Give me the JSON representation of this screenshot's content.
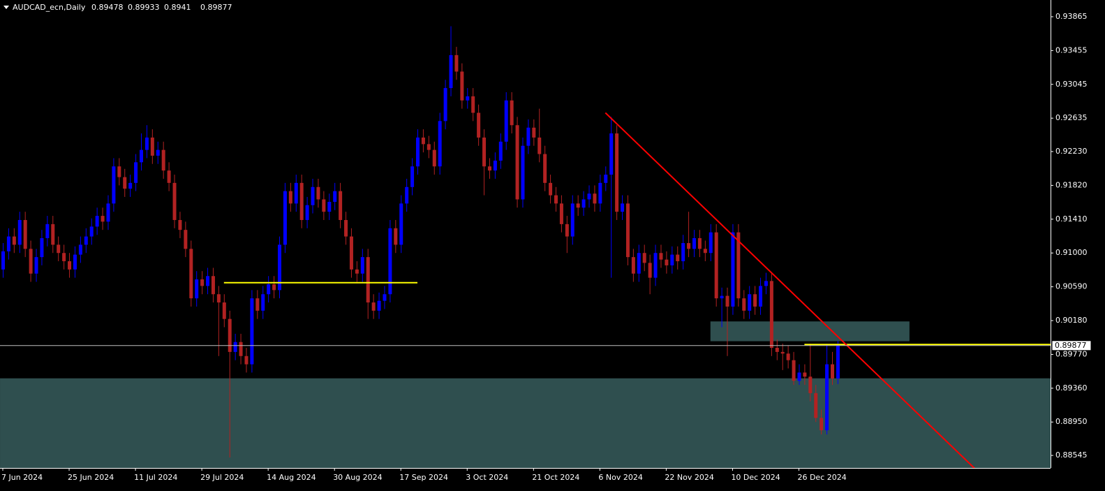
{
  "chart_data": {
    "type": "candlestick",
    "title": "AUDCAD_ecn,Daily",
    "categories": [
      "7 Jun 2024",
      null,
      null,
      null,
      null,
      null,
      null,
      null,
      null,
      null,
      null,
      null,
      "25 Jun 2024",
      null,
      null,
      null,
      null,
      null,
      null,
      null,
      null,
      null,
      null,
      null,
      "11 Jul 2024",
      null,
      null,
      null,
      null,
      null,
      null,
      null,
      null,
      null,
      null,
      null,
      "29 Jul 2024",
      null,
      null,
      null,
      null,
      null,
      null,
      null,
      null,
      null,
      null,
      null,
      "14 Aug 2024",
      null,
      null,
      null,
      null,
      null,
      null,
      null,
      null,
      null,
      null,
      null,
      "30 Aug 2024",
      null,
      null,
      null,
      null,
      null,
      null,
      null,
      null,
      null,
      null,
      null,
      "17 Sep 2024",
      null,
      null,
      null,
      null,
      null,
      null,
      null,
      null,
      null,
      null,
      null,
      "3 Oct 2024",
      null,
      null,
      null,
      null,
      null,
      null,
      null,
      null,
      null,
      null,
      null,
      "21 Oct 2024",
      null,
      null,
      null,
      null,
      null,
      null,
      null,
      null,
      null,
      null,
      null,
      "6 Nov 2024",
      null,
      null,
      null,
      null,
      null,
      null,
      null,
      null,
      null,
      null,
      null,
      "22 Nov 2024",
      null,
      null,
      null,
      null,
      null,
      null,
      null,
      null,
      null,
      null,
      null,
      "10 Dec 2024",
      null,
      null,
      null,
      null,
      null,
      null,
      null,
      null,
      null,
      null,
      null,
      "26 Dec 2024",
      null,
      null,
      null,
      null,
      null,
      null,
      null
    ],
    "open": [
      0.908,
      0.9102,
      0.912,
      0.911,
      0.914,
      0.9105,
      0.9075,
      0.9095,
      0.9118,
      0.9135,
      0.911,
      0.91,
      0.909,
      0.908,
      0.9098,
      0.911,
      0.912,
      0.9132,
      0.9145,
      0.9138,
      0.916,
      0.9205,
      0.9192,
      0.9178,
      0.9185,
      0.921,
      0.9225,
      0.924,
      0.9218,
      0.9225,
      0.92,
      0.9185,
      0.914,
      0.9128,
      0.9105,
      0.9045,
      0.9068,
      0.906,
      0.9072,
      0.905,
      0.904,
      0.902,
      0.898,
      0.8992,
      0.8975,
      0.8965,
      0.9045,
      0.903,
      0.905,
      0.9062,
      0.9055,
      0.911,
      0.9175,
      0.916,
      0.9185,
      0.914,
      0.9158,
      0.918,
      0.9165,
      0.915,
      0.9162,
      0.9175,
      0.914,
      0.912,
      0.908,
      0.9075,
      0.9095,
      0.904,
      0.903,
      0.9042,
      0.905,
      0.913,
      0.911,
      0.916,
      0.918,
      0.9205,
      0.924,
      0.9232,
      0.9225,
      0.9205,
      0.926,
      0.93,
      0.934,
      0.932,
      0.9285,
      0.929,
      0.927,
      0.924,
      0.9205,
      0.92,
      0.9212,
      0.9235,
      0.9285,
      0.9255,
      0.9165,
      0.923,
      0.9252,
      0.924,
      0.922,
      0.9185,
      0.917,
      0.916,
      0.9135,
      0.912,
      0.916,
      0.9155,
      0.9165,
      0.9172,
      0.916,
      0.9185,
      0.9195,
      0.9245,
      0.915,
      0.916,
      0.9095,
      0.9075,
      0.91,
      0.9088,
      0.907,
      0.91,
      0.9092,
      0.9085,
      0.9098,
      0.909,
      0.9112,
      0.9105,
      0.9118,
      0.9105,
      0.91,
      0.9125,
      0.9045,
      0.9048,
      0.9035,
      0.9125,
      0.9045,
      0.903,
      0.905,
      0.9035,
      0.906,
      0.9066,
      0.8985,
      0.898,
      0.8978,
      0.897,
      0.8945,
      0.8955,
      0.895,
      0.893,
      0.89,
      0.8885,
      0.8965,
      0.89478
    ],
    "high": [
      0.9112,
      0.913,
      0.913,
      0.915,
      0.915,
      0.9115,
      0.9105,
      0.9128,
      0.9145,
      0.9145,
      0.912,
      0.911,
      0.91,
      0.9108,
      0.912,
      0.913,
      0.9142,
      0.9155,
      0.9155,
      0.917,
      0.9215,
      0.9215,
      0.9202,
      0.9195,
      0.922,
      0.9245,
      0.9255,
      0.925,
      0.9235,
      0.9235,
      0.921,
      0.9195,
      0.915,
      0.9138,
      0.9115,
      0.9078,
      0.9078,
      0.9082,
      0.9082,
      0.906,
      0.905,
      0.903,
      0.9002,
      0.9002,
      0.8985,
      0.9055,
      0.9055,
      0.906,
      0.9072,
      0.9072,
      0.912,
      0.9185,
      0.9185,
      0.9195,
      0.9195,
      0.9168,
      0.919,
      0.919,
      0.9175,
      0.9172,
      0.9185,
      0.9185,
      0.915,
      0.913,
      0.909,
      0.9105,
      0.9105,
      0.905,
      0.9052,
      0.906,
      0.914,
      0.914,
      0.917,
      0.919,
      0.9215,
      0.925,
      0.925,
      0.9242,
      0.9235,
      0.927,
      0.931,
      0.9375,
      0.935,
      0.933,
      0.93,
      0.93,
      0.928,
      0.925,
      0.9215,
      0.9222,
      0.9245,
      0.9295,
      0.9295,
      0.9265,
      0.924,
      0.9262,
      0.9262,
      0.9275,
      0.923,
      0.9195,
      0.918,
      0.917,
      0.9145,
      0.917,
      0.917,
      0.9175,
      0.9182,
      0.9182,
      0.9195,
      0.9205,
      0.9265,
      0.9255,
      0.917,
      0.917,
      0.9105,
      0.911,
      0.911,
      0.9098,
      0.911,
      0.911,
      0.9102,
      0.9108,
      0.9108,
      0.9122,
      0.915,
      0.9128,
      0.9128,
      0.9115,
      0.9135,
      0.9135,
      0.9058,
      0.9058,
      0.9135,
      0.9135,
      0.9055,
      0.906,
      0.906,
      0.907,
      0.9076,
      0.9076,
      0.8995,
      0.899,
      0.8988,
      0.898,
      0.8965,
      0.8965,
      0.899,
      0.894,
      0.891,
      0.899,
      0.898,
      0.89933
    ],
    "low": [
      0.907,
      0.9092,
      0.91,
      0.91,
      0.9095,
      0.9065,
      0.9065,
      0.9085,
      0.9108,
      0.91,
      0.909,
      0.908,
      0.907,
      0.907,
      0.9088,
      0.91,
      0.911,
      0.9122,
      0.9128,
      0.9128,
      0.915,
      0.9182,
      0.9168,
      0.9168,
      0.9175,
      0.92,
      0.9215,
      0.9208,
      0.9208,
      0.919,
      0.9175,
      0.913,
      0.9118,
      0.9095,
      0.9035,
      0.9035,
      0.905,
      0.905,
      0.904,
      0.8975,
      0.901,
      0.8852,
      0.897,
      0.8965,
      0.8955,
      0.8955,
      0.902,
      0.902,
      0.904,
      0.9045,
      0.9045,
      0.91,
      0.915,
      0.915,
      0.913,
      0.913,
      0.9148,
      0.9155,
      0.914,
      0.914,
      0.9152,
      0.913,
      0.911,
      0.907,
      0.9065,
      0.9065,
      0.902,
      0.902,
      0.902,
      0.9032,
      0.904,
      0.91,
      0.91,
      0.915,
      0.917,
      0.9195,
      0.9222,
      0.9215,
      0.9195,
      0.9195,
      0.925,
      0.929,
      0.931,
      0.9275,
      0.9275,
      0.926,
      0.923,
      0.917,
      0.919,
      0.919,
      0.9202,
      0.9225,
      0.9245,
      0.9155,
      0.9155,
      0.922,
      0.923,
      0.921,
      0.9175,
      0.916,
      0.915,
      0.9125,
      0.91,
      0.911,
      0.9145,
      0.9145,
      0.9155,
      0.915,
      0.915,
      0.9175,
      0.907,
      0.914,
      0.914,
      0.9085,
      0.9065,
      0.9065,
      0.9078,
      0.905,
      0.906,
      0.9082,
      0.9075,
      0.9075,
      0.908,
      0.908,
      0.9095,
      0.9095,
      0.9095,
      0.909,
      0.909,
      0.9035,
      0.901,
      0.8975,
      0.9025,
      0.9035,
      0.902,
      0.902,
      0.9025,
      0.9025,
      0.905,
      0.8975,
      0.897,
      0.8958,
      0.896,
      0.894,
      0.894,
      0.894,
      0.892,
      0.8895,
      0.888,
      0.888,
      0.894,
      0.8941
    ],
    "close": [
      0.9102,
      0.912,
      0.911,
      0.914,
      0.9105,
      0.9075,
      0.9095,
      0.9118,
      0.9135,
      0.911,
      0.91,
      0.909,
      0.908,
      0.9098,
      0.911,
      0.912,
      0.9132,
      0.9145,
      0.9138,
      0.916,
      0.9205,
      0.9192,
      0.9178,
      0.9185,
      0.921,
      0.9225,
      0.924,
      0.9218,
      0.9225,
      0.92,
      0.9185,
      0.914,
      0.9128,
      0.9105,
      0.9045,
      0.9068,
      0.906,
      0.9072,
      0.905,
      0.904,
      0.902,
      0.898,
      0.8992,
      0.8975,
      0.8965,
      0.9045,
      0.903,
      0.905,
      0.9062,
      0.9055,
      0.911,
      0.9175,
      0.916,
      0.9185,
      0.914,
      0.9158,
      0.918,
      0.9165,
      0.915,
      0.9162,
      0.9175,
      0.914,
      0.912,
      0.908,
      0.9075,
      0.9095,
      0.904,
      0.903,
      0.9042,
      0.905,
      0.913,
      0.911,
      0.916,
      0.918,
      0.9205,
      0.924,
      0.9232,
      0.9225,
      0.9205,
      0.926,
      0.93,
      0.934,
      0.932,
      0.9285,
      0.929,
      0.927,
      0.924,
      0.9205,
      0.92,
      0.9212,
      0.9235,
      0.9285,
      0.9255,
      0.9165,
      0.923,
      0.9252,
      0.924,
      0.922,
      0.9185,
      0.917,
      0.916,
      0.9135,
      0.912,
      0.916,
      0.9155,
      0.9165,
      0.9172,
      0.916,
      0.9185,
      0.9195,
      0.9245,
      0.915,
      0.916,
      0.9095,
      0.9075,
      0.91,
      0.9088,
      0.907,
      0.91,
      0.9092,
      0.9085,
      0.9098,
      0.909,
      0.9112,
      0.9105,
      0.9118,
      0.9105,
      0.91,
      0.9125,
      0.9045,
      0.9048,
      0.9035,
      0.9125,
      0.9045,
      0.903,
      0.905,
      0.9035,
      0.906,
      0.9066,
      0.8985,
      0.898,
      0.8978,
      0.897,
      0.8945,
      0.8955,
      0.895,
      0.893,
      0.89,
      0.8885,
      0.8965,
      0.89478,
      0.89877
    ],
    "up_color": "#0000ff",
    "down_color": "#b22222",
    "ylim": [
      0.88393,
      0.94068
    ],
    "yticks": [
      0.93865,
      0.93455,
      0.93045,
      0.92635,
      {
        "value": 0.9223,
        "label": "0.92230"
      },
      {
        "value": 0.9182,
        "label": "0.91820"
      },
      {
        "value": 0.9141,
        "label": "0.91410"
      },
      {
        "value": 0.91,
        "label": "0.91000"
      },
      {
        "value": 0.9059,
        "label": "0.90590"
      },
      {
        "value": 0.9018,
        "label": "0.90180"
      },
      {
        "value": 0.8977,
        "label": "0.89770"
      },
      {
        "value": 0.8936,
        "label": "0.89360"
      },
      {
        "value": 0.8895,
        "label": "0.88950"
      },
      0.88545
    ],
    "grid": false,
    "zones": [
      {
        "top": 0.8948,
        "bottom": 0.88,
        "from": -0.5,
        "to": 190,
        "color": "#2f4f4f"
      },
      {
        "top": 0.9017,
        "bottom": 0.8993,
        "from": 128,
        "to": 164,
        "color": "#2f4f4f"
      }
    ],
    "levels": [
      {
        "price": 0.9064,
        "from": 40,
        "to": 75,
        "color": "#ffff00"
      },
      {
        "price": 0.8989,
        "from": 145,
        "to": 190,
        "color": "#ffff00"
      }
    ],
    "trendline": {
      "from": [
        109,
        0.927
      ],
      "to": [
        179,
        0.8818
      ],
      "color": "#ff0000"
    }
  }
}
